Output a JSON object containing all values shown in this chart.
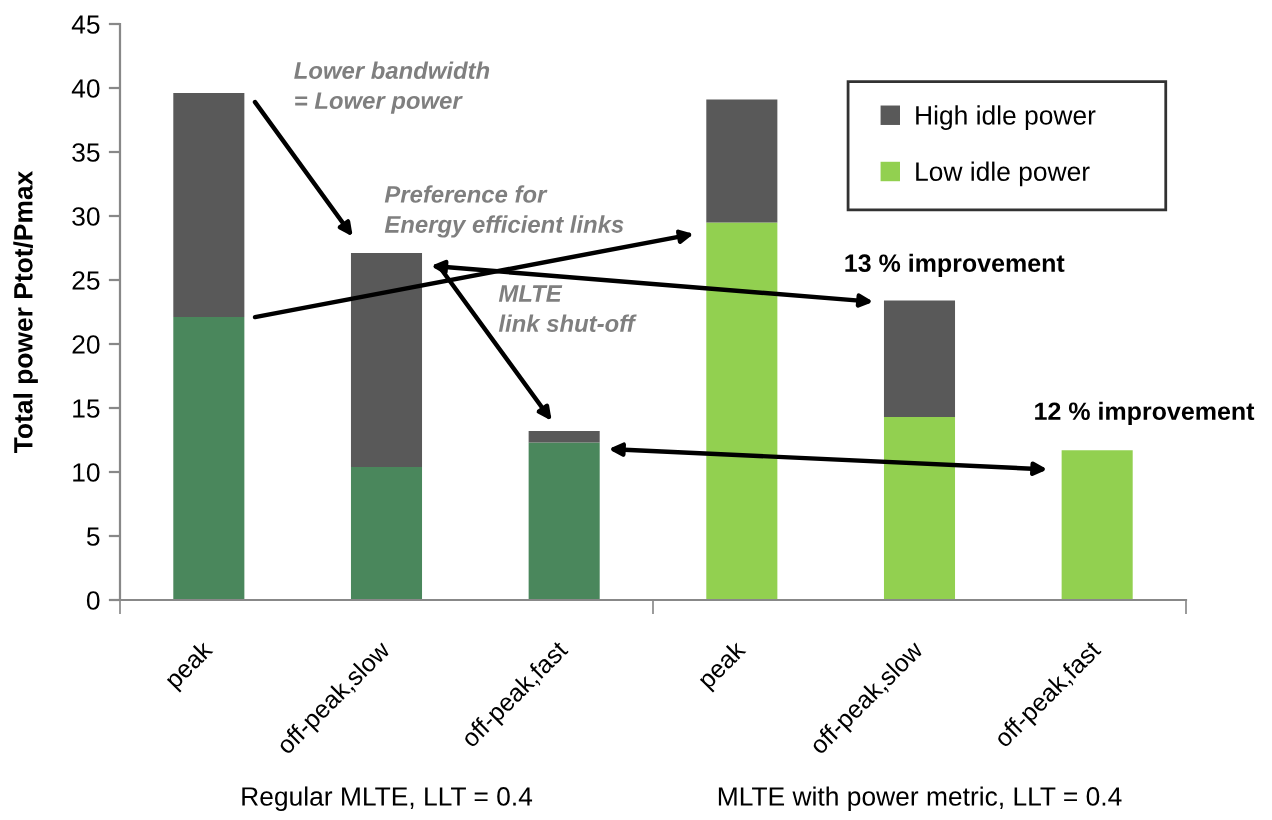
{
  "chart_data": {
    "type": "bar",
    "stacked": true,
    "ylabel": "Total power Ptot/Pmax",
    "categories": [
      "peak",
      "off-peak,slow",
      "off-peak,fast",
      "peak",
      "off-peak,slow",
      "off-peak,fast"
    ],
    "series": [
      {
        "name": "Low idle power",
        "color": "#92d050",
        "colors": [
          "#4a875c",
          "#4a875c",
          "#4a875c",
          "#92d050",
          "#92d050",
          "#92d050"
        ],
        "values": [
          22.1,
          10.4,
          12.3,
          29.5,
          14.3,
          11.7
        ]
      },
      {
        "name": "High idle power",
        "color": "#595959",
        "values": [
          17.5,
          16.7,
          0.9,
          9.6,
          9.1,
          null
        ]
      }
    ],
    "ylim": [
      0,
      45
    ],
    "yticks": [
      0,
      5,
      10,
      15,
      20,
      25,
      30,
      35,
      40,
      45
    ],
    "grid": false,
    "legend": "top right",
    "annotations": [
      "Lower bandwidth\n= Lower power",
      "Preference for\nEnergy efficient links",
      "MLTE\nlink shut-off",
      "13 % improvement",
      "12 % improvement",
      "Regular MLTE, LLT = 0.4",
      "MLTE with power metric, LLT = 0.4"
    ]
  }
}
